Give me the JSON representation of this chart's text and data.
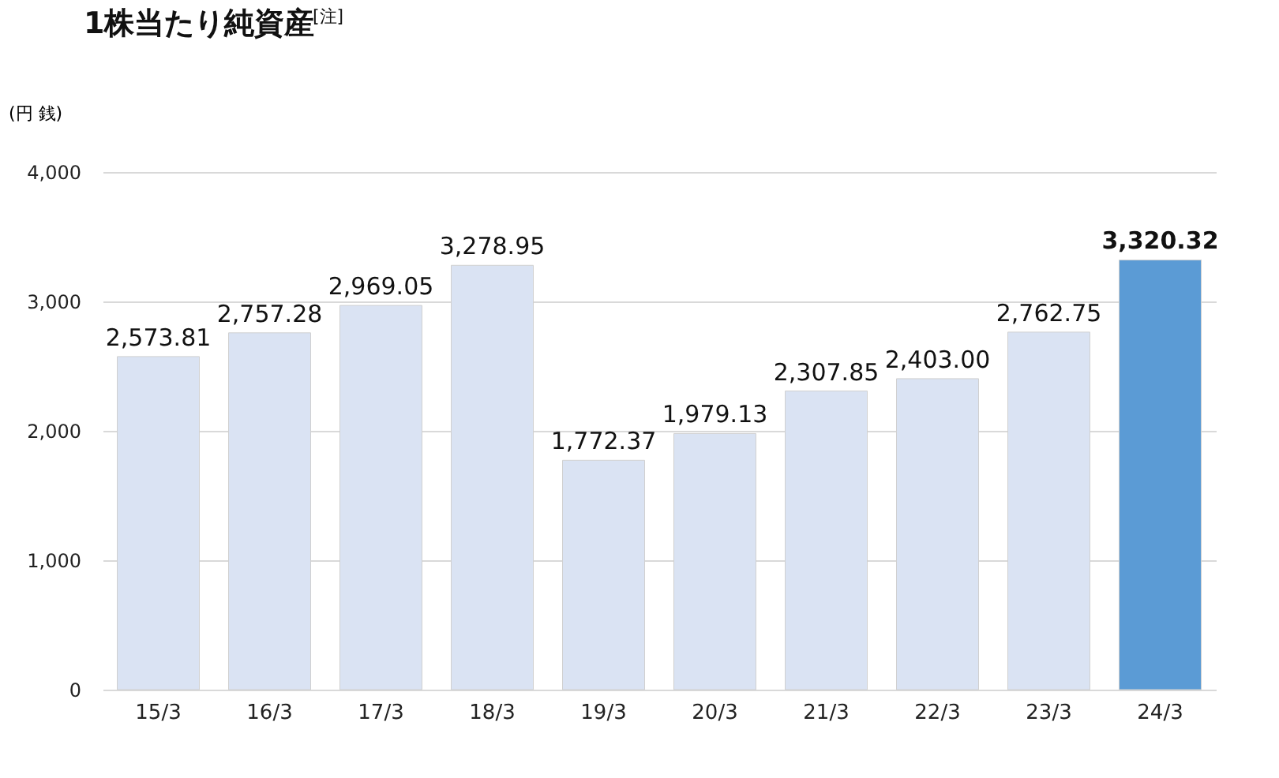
{
  "chart_data": {
    "type": "bar",
    "title": "1株当たり純資産$^{[注]}$",
    "ylabel": "(円 銭)",
    "categories": [
      "15/3",
      "16/3",
      "17/3",
      "18/3",
      "19/3",
      "20/3",
      "21/3",
      "22/3",
      "23/3",
      "24/3"
    ],
    "values": [
      2573.81,
      2757.28,
      2969.05,
      3278.95,
      1772.37,
      1979.13,
      2307.85,
      2403.0,
      2762.75,
      3320.32
    ],
    "colors": [
      "#dae3f3",
      "#dae3f3",
      "#dae3f3",
      "#dae3f3",
      "#dae3f3",
      "#dae3f3",
      "#dae3f3",
      "#dae3f3",
      "#dae3f3",
      "#5b9bd5"
    ],
    "ylim": [
      0,
      4000
    ],
    "yticks": [
      0,
      {
        "value": 1000,
        "label": "1,000"
      },
      {
        "value": 2000,
        "label": "2,000"
      },
      {
        "value": 3000,
        "label": "3,000"
      },
      {
        "value": 4000,
        "label": "4,000"
      }
    ],
    "value_labels": [
      "2,573.81",
      "2,757.28",
      "2,969.05",
      "3,278.95",
      "1,772.37",
      "1,979.13",
      "2,307.85",
      "2,403.00",
      "2,762.75",
      "3,320.32"
    ],
    "grid": "y"
  }
}
